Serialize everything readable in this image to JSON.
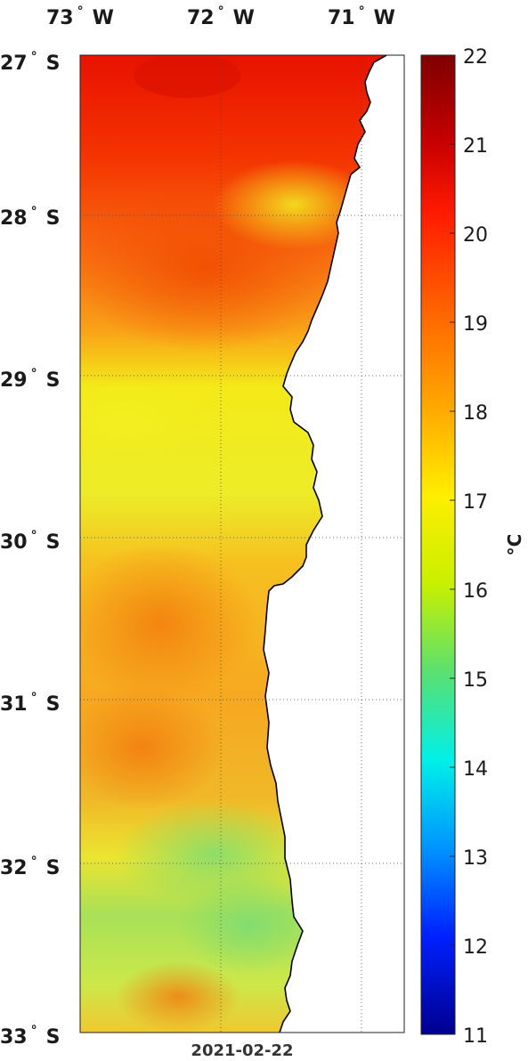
{
  "map": {
    "longitude_labels": [
      "73",
      "72",
      "71"
    ],
    "longitude_hemisphere": "W",
    "latitude_labels": [
      "27",
      "28",
      "29",
      "30",
      "31",
      "32",
      "33"
    ],
    "latitude_hemisphere": "S",
    "degree_symbol": "°",
    "date": "2021-02-22",
    "land_color": "#ffffff",
    "coast_color": "#000000"
  },
  "colorbar": {
    "ticks": [
      "22",
      "21",
      "20",
      "19",
      "18",
      "17",
      "16",
      "15",
      "14",
      "13",
      "12",
      "11"
    ],
    "range": [
      11,
      22
    ],
    "unit": "°C",
    "colormap": "jet"
  }
}
